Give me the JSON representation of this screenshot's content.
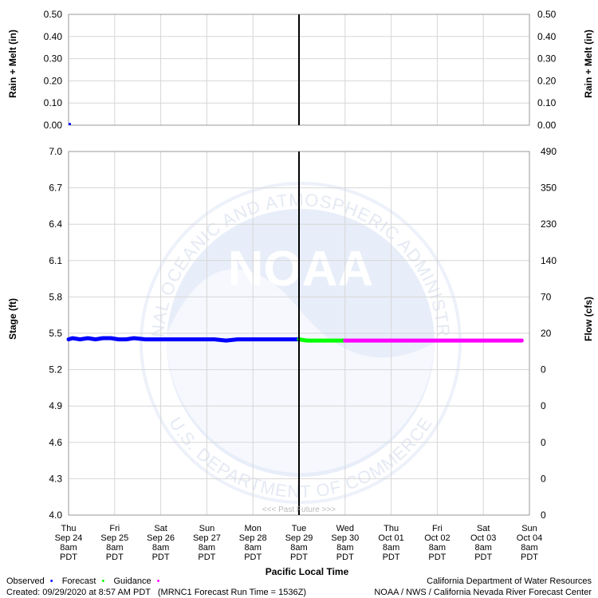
{
  "chart_data": [
    {
      "type": "bar",
      "ylabel": "Rain + Melt (in)",
      "ylim": [
        0,
        0.5
      ],
      "yticks": [
        "0.50",
        "0.40",
        "0.30",
        "0.20",
        "0.10",
        "0.00"
      ],
      "grid": true,
      "series": [
        {
          "name": "Observed",
          "color": "#0000ff",
          "points": [
            [
              "2020-09-24T08",
              0.01
            ]
          ]
        }
      ]
    },
    {
      "type": "line",
      "ylabel_left": "Stage (ft)",
      "ylabel_right": "Flow (cfs)",
      "ylim": [
        4.0,
        7.0
      ],
      "yticks_left": [
        "7.0",
        "6.7",
        "6.4",
        "6.1",
        "5.8",
        "5.5",
        "5.2",
        "4.9",
        "4.6",
        "4.3",
        "4.0"
      ],
      "yticks_right": [
        "490",
        "350",
        "230",
        "140",
        "70",
        "20",
        "0",
        "0",
        "0",
        "0",
        "0"
      ],
      "xlabel": "Pacific Local Time",
      "xticks": [
        {
          "day": "Thu",
          "date": "Sep 24",
          "time": "8am",
          "tz": "PDT"
        },
        {
          "day": "Fri",
          "date": "Sep 25",
          "time": "8am",
          "tz": "PDT"
        },
        {
          "day": "Sat",
          "date": "Sep 26",
          "time": "8am",
          "tz": "PDT"
        },
        {
          "day": "Sun",
          "date": "Sep 27",
          "time": "8am",
          "tz": "PDT"
        },
        {
          "day": "Mon",
          "date": "Sep 28",
          "time": "8am",
          "tz": "PDT"
        },
        {
          "day": "Tue",
          "date": "Sep 29",
          "time": "8am",
          "tz": "PDT"
        },
        {
          "day": "Wed",
          "date": "Sep 30",
          "time": "8am",
          "tz": "PDT"
        },
        {
          "day": "Thu",
          "date": "Oct 01",
          "time": "8am",
          "tz": "PDT"
        },
        {
          "day": "Fri",
          "date": "Oct 02",
          "time": "8am",
          "tz": "PDT"
        },
        {
          "day": "Sat",
          "date": "Oct 03",
          "time": "8am",
          "tz": "PDT"
        },
        {
          "day": "Sun",
          "date": "Oct 04",
          "time": "8am",
          "tz": "PDT"
        }
      ],
      "past_future_label": "<<< Past   Future >>>",
      "now_marker": "2020-09-29T08",
      "grid": true,
      "series": [
        {
          "name": "Observed",
          "color": "#0000ff",
          "points": [
            [
              "2020-09-24T08",
              5.45
            ],
            [
              "2020-09-24T10",
              5.46
            ],
            [
              "2020-09-24T14",
              5.45
            ],
            [
              "2020-09-24T18",
              5.46
            ],
            [
              "2020-09-24T22",
              5.45
            ],
            [
              "2020-09-25T02",
              5.46
            ],
            [
              "2020-09-25T06",
              5.46
            ],
            [
              "2020-09-25T10",
              5.45
            ],
            [
              "2020-09-25T14",
              5.45
            ],
            [
              "2020-09-25T18",
              5.46
            ],
            [
              "2020-09-26T00",
              5.45
            ],
            [
              "2020-09-26T12",
              5.45
            ],
            [
              "2020-09-27T00",
              5.45
            ],
            [
              "2020-09-27T12",
              5.45
            ],
            [
              "2020-09-27T18",
              5.44
            ],
            [
              "2020-09-28T00",
              5.45
            ],
            [
              "2020-09-28T06",
              5.45
            ],
            [
              "2020-09-28T12",
              5.45
            ],
            [
              "2020-09-29T00",
              5.45
            ],
            [
              "2020-09-29T08",
              5.45
            ]
          ]
        },
        {
          "name": "Forecast",
          "color": "#00ff00",
          "points": [
            [
              "2020-09-29T08",
              5.45
            ],
            [
              "2020-09-29T12",
              5.44
            ],
            [
              "2020-09-30T00",
              5.44
            ],
            [
              "2020-09-30T08",
              5.44
            ]
          ]
        },
        {
          "name": "Guidance",
          "color": "#ff00ff",
          "points": [
            [
              "2020-09-30T08",
              5.44
            ],
            [
              "2020-10-01T08",
              5.44
            ],
            [
              "2020-10-02T08",
              5.44
            ],
            [
              "2020-10-03T08",
              5.44
            ],
            [
              "2020-10-04T04",
              5.44
            ]
          ]
        }
      ]
    }
  ],
  "legend": {
    "items": [
      {
        "label": "Observed",
        "color": "#0000ff"
      },
      {
        "label": "Forecast",
        "color": "#00ff00"
      },
      {
        "label": "Guidance",
        "color": "#ff00ff"
      }
    ]
  },
  "footer": {
    "created": "Created: 09/29/2020 at 8:57 AM PDT",
    "run": "(MRNC1 Forecast Run Time = 1536Z)",
    "agency1": "California Department of Water Resources",
    "agency2": "NOAA / NWS / California Nevada River Forecast Center"
  },
  "watermark": {
    "center": "NOAA",
    "ring_top": "NATIONAL OCEANIC AND ATMOSPHERIC ADMINISTRATION",
    "ring_bottom": "U.S. DEPARTMENT OF COMMERCE"
  }
}
